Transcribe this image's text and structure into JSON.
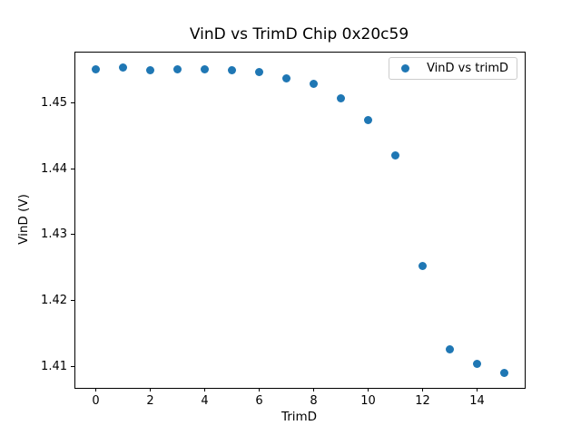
{
  "chart_data": {
    "type": "scatter",
    "title": "VinD vs TrimD Chip 0x20c59",
    "xlabel": "TrimD",
    "ylabel": "VinD (V)",
    "series": [
      {
        "name": "VinD vs trimD",
        "x": [
          0,
          1,
          2,
          3,
          4,
          5,
          6,
          7,
          8,
          9,
          10,
          11,
          12,
          13,
          14,
          15
        ],
        "y": [
          1.4551,
          1.4554,
          1.455,
          1.4552,
          1.4551,
          1.455,
          1.4547,
          1.4538,
          1.4529,
          1.4507,
          1.4474,
          1.442,
          1.4252,
          1.4125,
          1.4103,
          1.409
        ],
        "marker_color": "#1f77b4"
      }
    ],
    "xlim": [
      -0.75,
      15.75
    ],
    "ylim": [
      1.4067,
      1.4577
    ],
    "x_ticks": {
      "values": [
        0,
        2,
        4,
        6,
        8,
        10,
        12,
        14
      ],
      "labels": [
        "0",
        "2",
        "4",
        "6",
        "8",
        "10",
        "12",
        "14"
      ]
    },
    "y_ticks": {
      "values": [
        1.41,
        1.42,
        1.43,
        1.44,
        1.45
      ],
      "labels": [
        "1.41",
        "1.42",
        "1.43",
        "1.44",
        "1.45"
      ]
    },
    "grid": false,
    "legend": {
      "position": "upper right",
      "entries": [
        "VinD vs trimD"
      ]
    },
    "colors": {
      "marker": "#1f77b4",
      "spine": "#000000",
      "legend_border": "#cccccc",
      "background": "#ffffff"
    }
  }
}
